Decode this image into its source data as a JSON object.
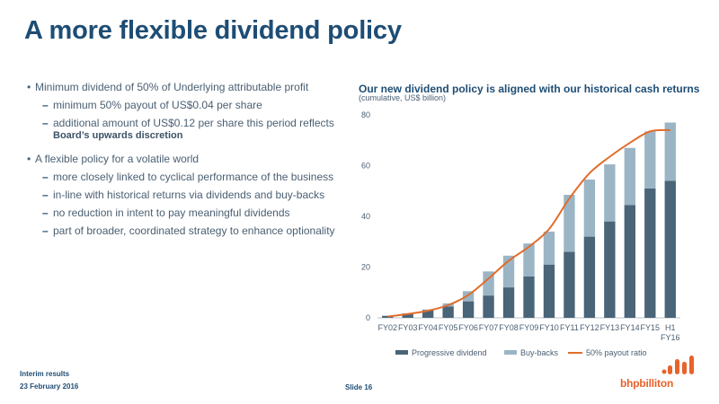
{
  "slide": {
    "title": "A more flexible dividend policy",
    "footer_line1": "Interim results",
    "footer_line2": "23 February 2016",
    "slide_number": "Slide 16",
    "logo_text": "bhpbilliton"
  },
  "bullets": {
    "b1": "Minimum dividend of 50% of Underlying attributable profit",
    "b1_1": "minimum 50% payout of US$0.04 per share",
    "b1_2": "additional amount of US$0.12 per share this period reflects",
    "b1_2_cont": "Board’s upwards discretion",
    "b2": "A flexible policy for a volatile world",
    "b2_1": "more closely linked to cyclical performance of the business",
    "b2_2": "in-line with historical returns via dividends and buy-backs",
    "b2_3": "no reduction in intent to pay meaningful dividends",
    "b2_4": "part of broader, coordinated strategy to enhance optionality",
    "bullet_mark": "•",
    "dash_mark": "–"
  },
  "chart_data": {
    "type": "bar",
    "stacked": true,
    "title": "Our new dividend policy is aligned with our historical cash returns",
    "subtitle": "(cumulative, US$ billion)",
    "categories": [
      "FY02",
      "FY03",
      "FY04",
      "FY05",
      "FY06",
      "FY07",
      "FY08",
      "FY09",
      "FY10",
      "FY11",
      "FY12",
      "FY13",
      "FY14",
      "FY15",
      "H1 FY16"
    ],
    "series": [
      {
        "name": "Progressive dividend",
        "type": "bar",
        "color": "#4a6478",
        "values": [
          0.8,
          1.7,
          3.0,
          4.5,
          6.5,
          8.8,
          12.0,
          16.3,
          21.0,
          26.0,
          32.0,
          38.0,
          44.5,
          51.0,
          54.0
        ]
      },
      {
        "name": "Buy-backs",
        "type": "bar",
        "color": "#9bb5c5",
        "values": [
          0,
          0,
          0.3,
          1.2,
          4.0,
          9.5,
          12.5,
          13.0,
          13.0,
          22.5,
          22.5,
          22.5,
          22.5,
          22.5,
          23.0
        ]
      },
      {
        "name": "50% payout ratio",
        "type": "line",
        "color": "#e16c2b",
        "values": [
          0.5,
          1.5,
          2.8,
          5.0,
          9.0,
          15.5,
          22.5,
          28.0,
          35.0,
          47.0,
          57.0,
          63.5,
          69.0,
          73.5,
          74.0
        ]
      }
    ],
    "ylim": [
      0,
      80
    ],
    "yticks": [
      0,
      20,
      40,
      60,
      80
    ],
    "legend": "bottom"
  }
}
